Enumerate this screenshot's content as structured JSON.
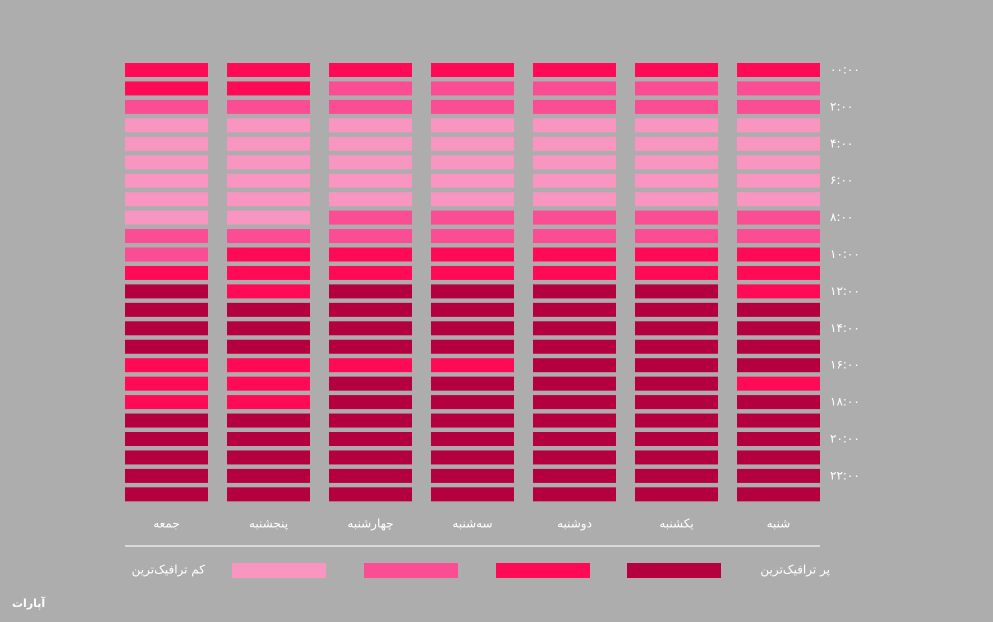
{
  "chart_data": {
    "type": "heatmap",
    "columns": [
      "جمعه",
      "پنجشنبه",
      "چهارشنبه",
      "سه‌شنبه",
      "دوشنبه",
      "یکشنبه",
      "شنبه"
    ],
    "rows": [
      "۰۰:۰۰",
      null,
      "۲:۰۰",
      null,
      "۴:۰۰",
      null,
      "۶:۰۰",
      null,
      "۸:۰۰",
      null,
      "۱۰:۰۰",
      null,
      "۱۲:۰۰",
      null,
      "۱۴:۰۰",
      null,
      "۱۶:۰۰",
      null,
      "۱۸:۰۰",
      null,
      "۲۰:۰۰",
      null,
      "۲۲:۰۰",
      null
    ],
    "levels": [
      "#f895c0",
      "#fb4d94",
      "#ff0a57",
      "#b5003f"
    ],
    "legend_low": "کم ترافیک‌ترین",
    "legend_high": "پر ترافیک‌ترین",
    "values": [
      [
        2,
        2,
        2,
        2,
        2,
        2,
        2
      ],
      [
        2,
        2,
        1,
        1,
        1,
        1,
        1
      ],
      [
        1,
        1,
        1,
        1,
        1,
        1,
        1
      ],
      [
        0,
        0,
        0,
        0,
        0,
        0,
        0
      ],
      [
        0,
        0,
        0,
        0,
        0,
        0,
        0
      ],
      [
        0,
        0,
        0,
        0,
        0,
        0,
        0
      ],
      [
        0,
        0,
        0,
        0,
        0,
        0,
        0
      ],
      [
        0,
        0,
        0,
        0,
        0,
        0,
        0
      ],
      [
        0,
        0,
        1,
        1,
        1,
        1,
        1
      ],
      [
        1,
        1,
        1,
        1,
        1,
        1,
        1
      ],
      [
        1,
        2,
        2,
        2,
        2,
        2,
        2
      ],
      [
        2,
        2,
        2,
        2,
        2,
        2,
        2
      ],
      [
        3,
        2,
        3,
        3,
        3,
        3,
        2
      ],
      [
        3,
        3,
        3,
        3,
        3,
        3,
        3
      ],
      [
        3,
        3,
        3,
        3,
        3,
        3,
        3
      ],
      [
        3,
        3,
        3,
        3,
        3,
        3,
        3
      ],
      [
        2,
        2,
        2,
        2,
        3,
        3,
        3
      ],
      [
        2,
        2,
        3,
        3,
        3,
        3,
        2
      ],
      [
        2,
        2,
        3,
        3,
        3,
        3,
        3
      ],
      [
        3,
        3,
        3,
        3,
        3,
        3,
        3
      ],
      [
        3,
        3,
        3,
        3,
        3,
        3,
        3
      ],
      [
        3,
        3,
        3,
        3,
        3,
        3,
        3
      ],
      [
        3,
        3,
        3,
        3,
        3,
        3,
        3
      ],
      [
        3,
        3,
        3,
        3,
        3,
        3,
        3
      ]
    ]
  },
  "watermark": "آپارات"
}
